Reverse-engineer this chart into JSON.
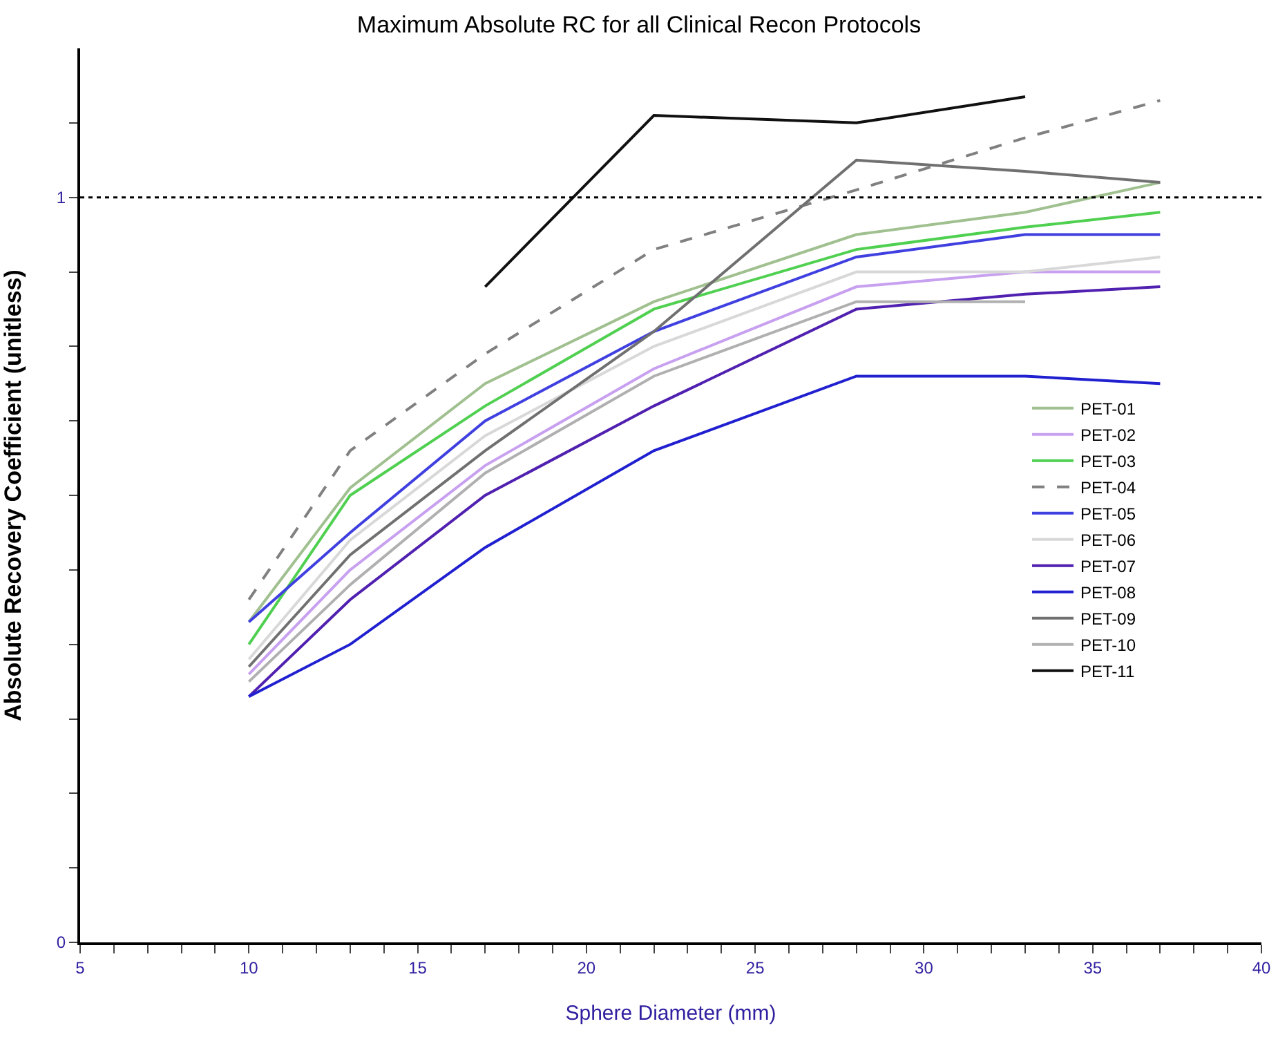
{
  "chart_data": {
    "type": "line",
    "title": "Maximum Absolute RC for all Clinical Recon Protocols",
    "xlabel": "Sphere Diameter (mm)",
    "ylabel": "Absolute Recovery Coefficient (unitless)",
    "x": [
      10,
      13,
      17,
      22,
      28,
      33,
      37
    ],
    "series": [
      {
        "name": "PET-01",
        "color": "#a0c090",
        "values": [
          0.43,
          0.61,
          0.75,
          0.86,
          0.95,
          0.98,
          1.02
        ]
      },
      {
        "name": "PET-02",
        "color": "#c8a0f0",
        "values": [
          0.36,
          0.5,
          0.64,
          0.77,
          0.88,
          0.9,
          0.9
        ]
      },
      {
        "name": "PET-03",
        "color": "#50d050",
        "values": [
          0.4,
          0.6,
          0.72,
          0.85,
          0.93,
          0.96,
          0.98
        ]
      },
      {
        "name": "PET-04",
        "color": "#808080",
        "line_style": "dashed",
        "values": [
          0.46,
          0.66,
          0.79,
          0.93,
          1.01,
          1.08,
          1.13
        ]
      },
      {
        "name": "PET-05",
        "color": "#4040e0",
        "values": [
          0.43,
          0.55,
          0.7,
          0.82,
          0.92,
          0.95,
          0.95
        ]
      },
      {
        "name": "PET-06",
        "color": "#d8d8d8",
        "values": [
          0.38,
          0.54,
          0.68,
          0.8,
          0.9,
          0.9,
          0.92
        ]
      },
      {
        "name": "PET-07",
        "color": "#5020b0",
        "values": [
          0.33,
          0.46,
          0.6,
          0.72,
          0.85,
          0.87,
          0.88
        ]
      },
      {
        "name": "PET-08",
        "color": "#2020d0",
        "values": [
          0.33,
          0.4,
          0.53,
          0.66,
          0.76,
          0.76,
          0.75
        ]
      },
      {
        "name": "PET-09",
        "color": "#707070",
        "values": [
          0.37,
          0.52,
          0.66,
          0.82,
          1.05,
          1.035,
          1.02
        ]
      },
      {
        "name": "PET-10",
        "color": "#b0b0b0",
        "values": [
          0.35,
          0.48,
          0.63,
          0.76,
          0.86,
          0.86,
          null
        ]
      },
      {
        "name": "PET-11",
        "color": "#101010",
        "values": [
          null,
          null,
          0.88,
          1.11,
          1.1,
          1.135,
          null
        ]
      }
    ],
    "xlim": [
      5,
      40
    ],
    "xticks": [
      5,
      {
        "value": 6,
        "label": null
      },
      {
        "value": 7,
        "label": null
      },
      {
        "value": 8,
        "label": null
      },
      {
        "value": 9,
        "label": null
      },
      10,
      {
        "value": 11,
        "label": null
      },
      {
        "value": 12,
        "label": null
      },
      {
        "value": 13,
        "label": null
      },
      {
        "value": 14,
        "label": null
      },
      15,
      {
        "value": 16,
        "label": null
      },
      {
        "value": 17,
        "label": null
      },
      {
        "value": 18,
        "label": null
      },
      {
        "value": 19,
        "label": null
      },
      20,
      {
        "value": 21,
        "label": null
      },
      {
        "value": 22,
        "label": null
      },
      {
        "value": 23,
        "label": null
      },
      {
        "value": 24,
        "label": null
      },
      25,
      {
        "value": 26,
        "label": null
      },
      {
        "value": 27,
        "label": null
      },
      {
        "value": 28,
        "label": null
      },
      {
        "value": 29,
        "label": null
      },
      30,
      {
        "value": 31,
        "label": null
      },
      {
        "value": 32,
        "label": null
      },
      {
        "value": 33,
        "label": null
      },
      {
        "value": 34,
        "label": null
      },
      35,
      {
        "value": 36,
        "label": null
      },
      {
        "value": 37,
        "label": null
      },
      {
        "value": 38,
        "label": null
      },
      {
        "value": 39,
        "label": null
      },
      40
    ],
    "ylim": [
      0,
      1.2
    ],
    "yticks": [
      0,
      {
        "value": 0.1,
        "label": null
      },
      {
        "value": 0.2,
        "label": null
      },
      {
        "value": 0.3,
        "label": null
      },
      {
        "value": 0.4,
        "label": null
      },
      {
        "value": 0.5,
        "label": null
      },
      {
        "value": 0.6,
        "label": null
      },
      {
        "value": 0.7,
        "label": null
      },
      {
        "value": 0.8,
        "label": null
      },
      {
        "value": 0.9,
        "label": null
      },
      1,
      {
        "value": 1.1,
        "label": null
      }
    ],
    "ref_lines": [
      {
        "axis": "y",
        "value": 1,
        "color": "#000000",
        "line_style": "dotted"
      }
    ],
    "grid": false,
    "legend": "right",
    "marker": "none",
    "line_style": "solid"
  }
}
